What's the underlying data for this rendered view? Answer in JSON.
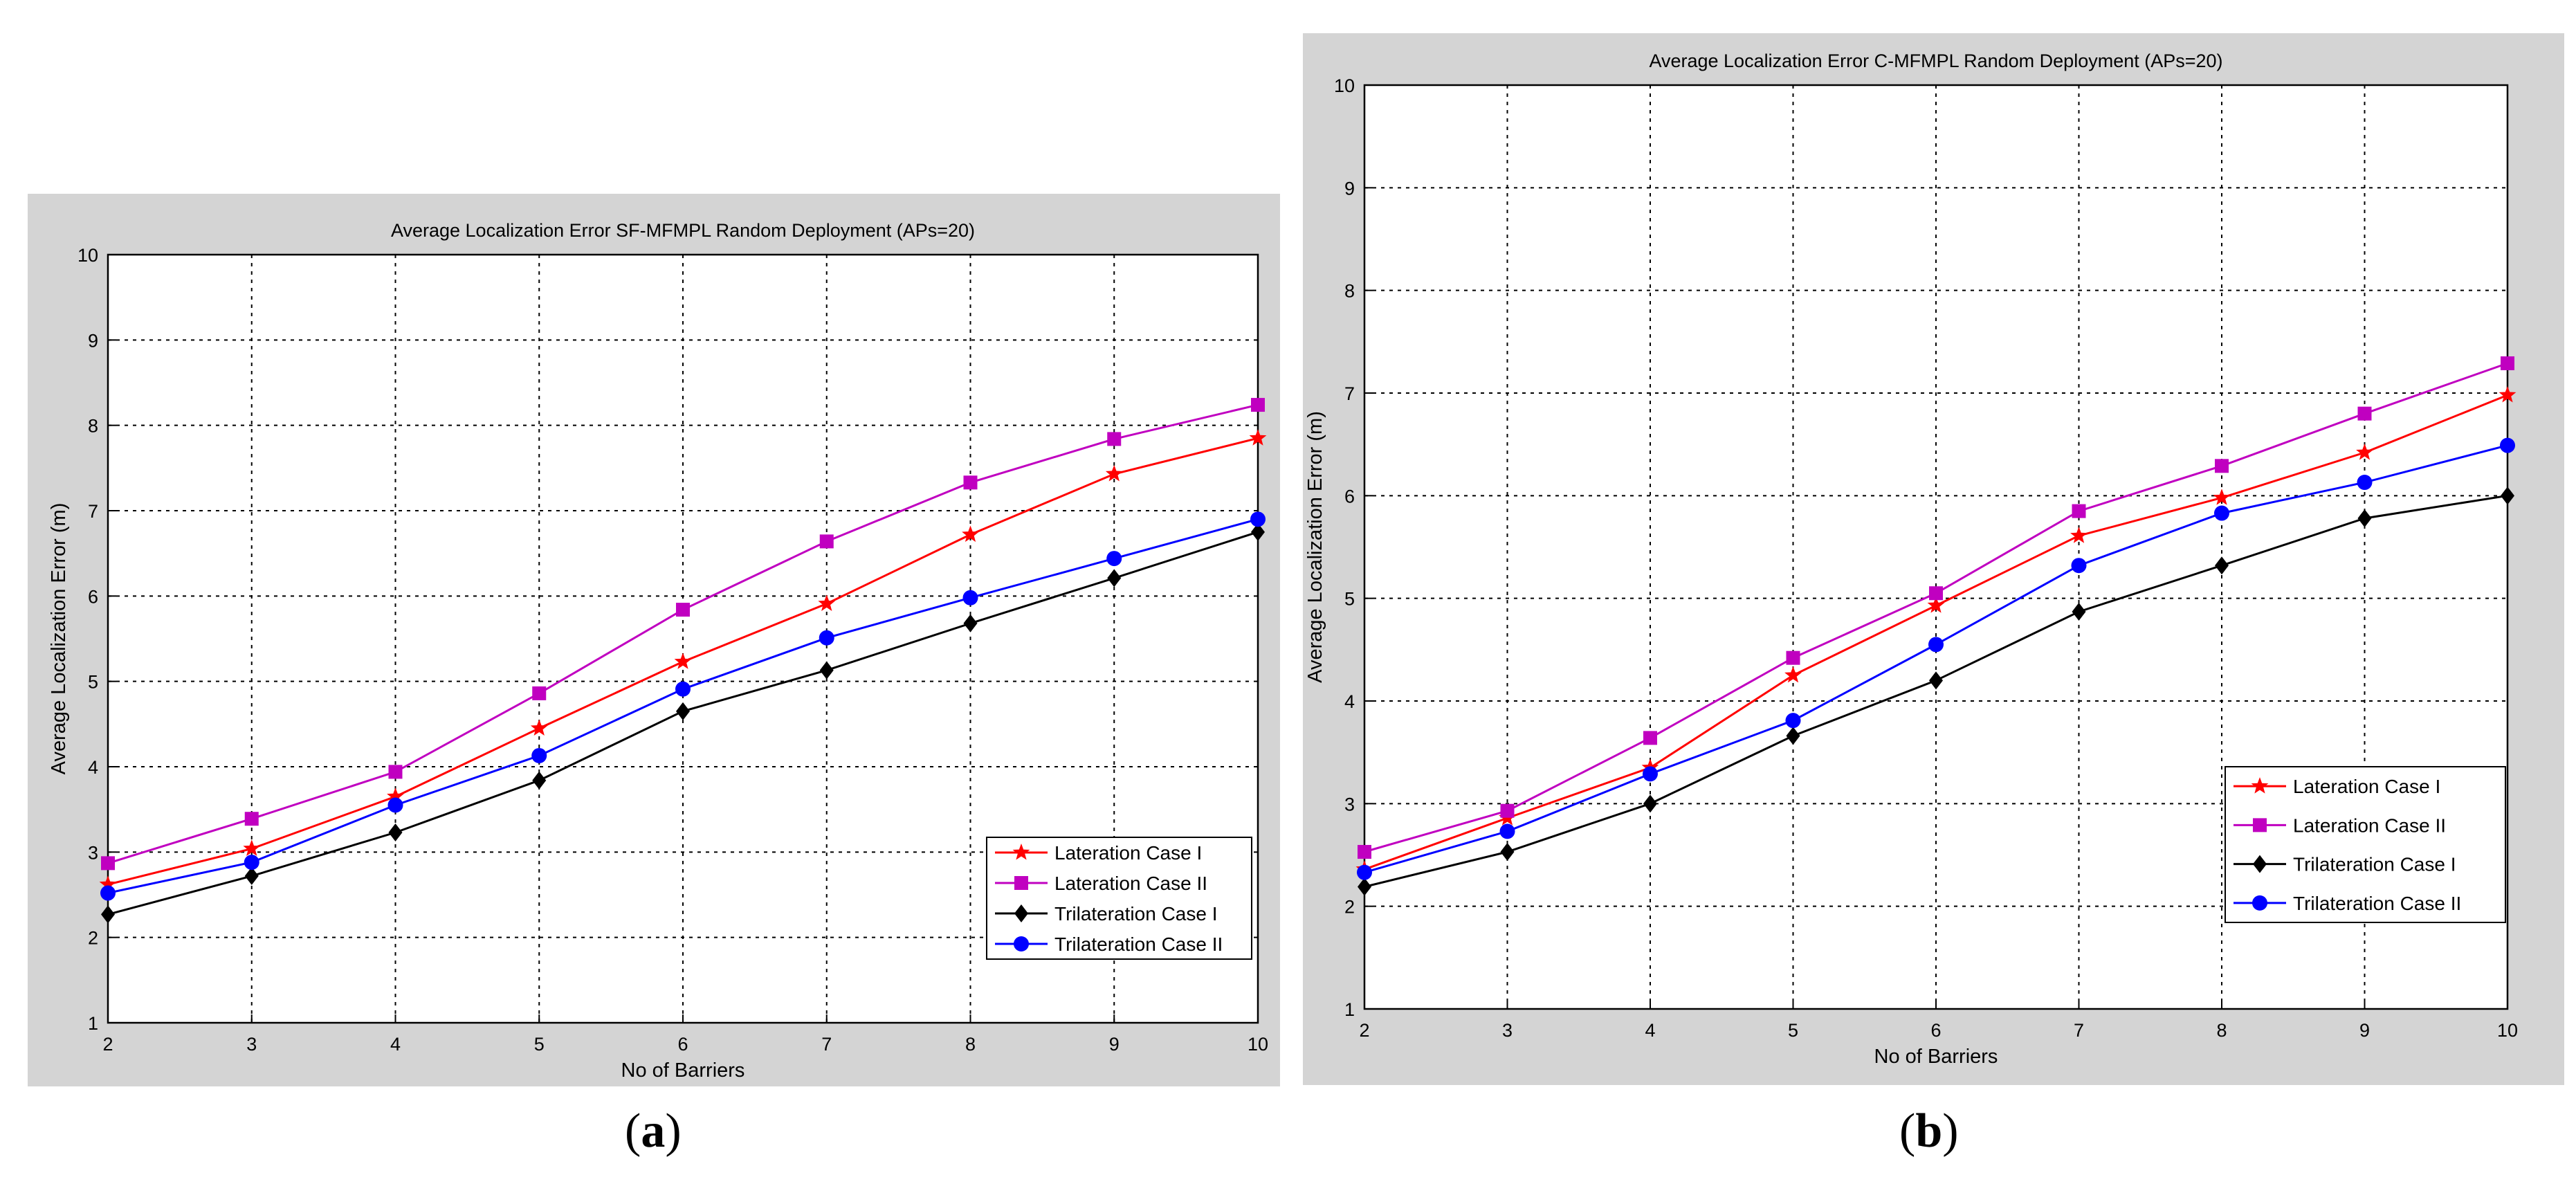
{
  "captions": {
    "a": {
      "open": "(",
      "letter": "a",
      "close": ")"
    },
    "b": {
      "open": "(",
      "letter": "b",
      "close": ")"
    }
  },
  "colors": {
    "frame": "#d4d4d4",
    "plot": "#ffffff",
    "grid": "#000000",
    "lateration_case_1": "#ff0000",
    "lateration_case_2": "#c000c0",
    "trilateration_case_1": "#000000",
    "trilateration_case_2": "#0000ff"
  },
  "chart_data": [
    {
      "type": "line",
      "title": "Average Localization Error SF-MFMPL Random Deployment (APs=20)",
      "xlabel": "No of Barriers",
      "ylabel": "Average Localization Error (m)",
      "xlim": [
        2,
        10
      ],
      "ylim": [
        1,
        10
      ],
      "xticks": [
        "2",
        "3",
        "4",
        "5",
        "6",
        "7",
        "8",
        "9",
        "10"
      ],
      "yticks": [
        "1",
        "2",
        "3",
        "4",
        "5",
        "6",
        "7",
        "8",
        "9",
        "10"
      ],
      "grid": true,
      "legend_position": "bottom-right",
      "x": [
        2,
        3,
        4,
        5,
        6,
        7,
        8,
        9,
        10
      ],
      "series": [
        {
          "name": "Lateration Case I",
          "marker": "star",
          "color": "#ff0000",
          "values": [
            2.62,
            3.04,
            3.65,
            4.45,
            5.23,
            5.91,
            6.72,
            7.43,
            7.85
          ]
        },
        {
          "name": "Lateration Case II",
          "marker": "square",
          "color": "#c000c0",
          "values": [
            2.87,
            3.39,
            3.94,
            4.86,
            5.84,
            6.64,
            7.33,
            7.84,
            8.24
          ]
        },
        {
          "name": "Trilateration Case I",
          "marker": "diamond",
          "color": "#000000",
          "values": [
            2.27,
            2.72,
            3.23,
            3.84,
            4.65,
            5.13,
            5.68,
            6.21,
            6.75
          ]
        },
        {
          "name": "Trilateration Case II",
          "marker": "circle",
          "color": "#0000ff",
          "values": [
            2.52,
            2.88,
            3.55,
            4.13,
            4.91,
            5.51,
            5.98,
            6.44,
            6.9
          ]
        }
      ]
    },
    {
      "type": "line",
      "title": "Average Localization Error C-MFMPL Random Deployment (APs=20)",
      "xlabel": "No of Barriers",
      "ylabel": "Average Localization Error (m)",
      "xlim": [
        2,
        10
      ],
      "ylim": [
        1,
        10
      ],
      "xticks": [
        "2",
        "3",
        "4",
        "5",
        "6",
        "7",
        "8",
        "9",
        "10"
      ],
      "yticks": [
        "1",
        "2",
        "3",
        "4",
        "5",
        "6",
        "7",
        "8",
        "9",
        "10"
      ],
      "grid": true,
      "legend_position": "bottom-right",
      "x": [
        2,
        3,
        4,
        5,
        6,
        7,
        8,
        9,
        10
      ],
      "series": [
        {
          "name": "Lateration Case I",
          "marker": "star",
          "color": "#ff0000",
          "values": [
            2.36,
            2.86,
            3.35,
            4.25,
            4.93,
            5.61,
            5.98,
            6.42,
            6.98
          ]
        },
        {
          "name": "Lateration Case II",
          "marker": "square",
          "color": "#c000c0",
          "values": [
            2.53,
            2.93,
            3.64,
            4.42,
            5.05,
            5.85,
            6.29,
            6.8,
            7.29
          ]
        },
        {
          "name": "Trilateration Case I",
          "marker": "diamond",
          "color": "#000000",
          "values": [
            2.19,
            2.53,
            3.0,
            3.66,
            4.2,
            4.87,
            5.32,
            5.78,
            6.0
          ]
        },
        {
          "name": "Trilateration Case II",
          "marker": "circle",
          "color": "#0000ff",
          "values": [
            2.33,
            2.73,
            3.29,
            3.81,
            4.55,
            5.32,
            5.83,
            6.13,
            6.49
          ]
        }
      ]
    }
  ]
}
